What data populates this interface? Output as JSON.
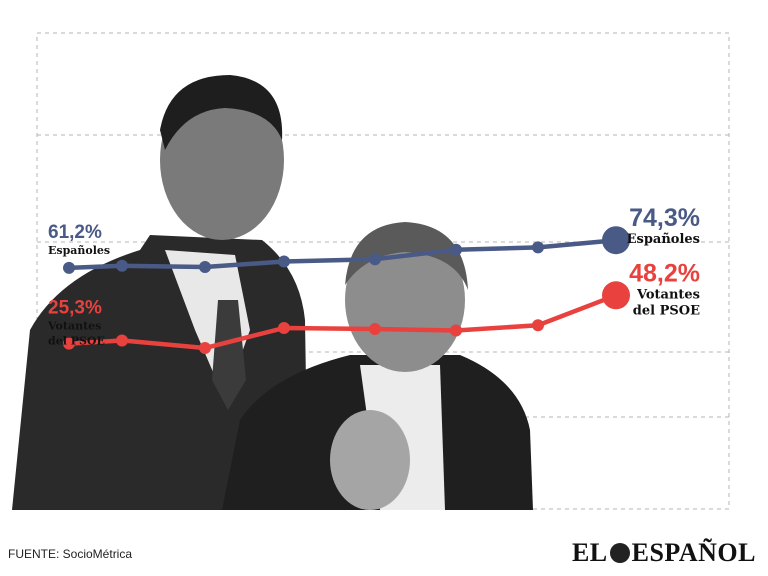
{
  "chart_data": {
    "type": "line",
    "x": [
      1,
      2,
      3,
      4,
      5,
      6,
      7,
      8
    ],
    "ylim": [
      0,
      100
    ],
    "grid": true,
    "series": [
      {
        "name": "Españoles",
        "color": "#4a5a86",
        "values": [
          61.2,
          62.2,
          61.6,
          64.2,
          65.3,
          69.8,
          70.9,
          74.3
        ],
        "start_label": "61,2%",
        "start_sub": "Españoles",
        "end_label": "74,3%",
        "end_sub": "Españoles"
      },
      {
        "name": "Votantes del PSOE",
        "color": "#e8413e",
        "values": [
          25.3,
          26.8,
          23.2,
          32.7,
          32.2,
          31.5,
          34.0,
          48.2
        ],
        "start_label": "25,3%",
        "start_sub": [
          "Votantes",
          "del PSOE"
        ],
        "end_label": "48,2%",
        "end_sub": [
          "Votantes",
          "del PSOE"
        ]
      }
    ]
  },
  "footer": {
    "source": "FUENTE: SocioMétrica",
    "logo_left": "EL",
    "logo_right": "ESPAÑOL",
    "logo_icon": "lion-head-icon"
  }
}
